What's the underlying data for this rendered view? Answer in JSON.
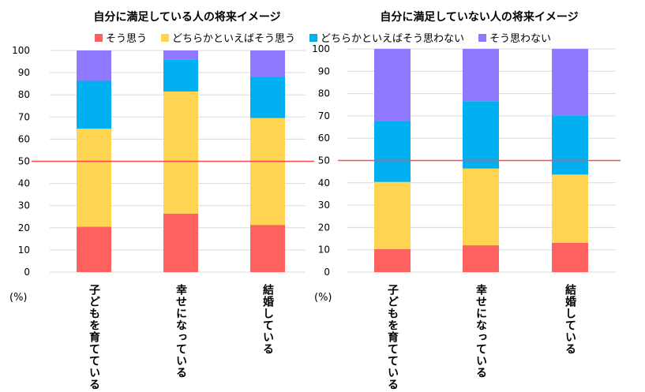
{
  "legend": [
    "そう思う",
    "どちらかといえばそう思う",
    "どちらかといえばそう思わない",
    "そう思わない"
  ],
  "colors": [
    "#FF6161",
    "#FFD452",
    "#00B0F0",
    "#9179FF"
  ],
  "chart_data": [
    {
      "type": "bar",
      "stacked": true,
      "title": "自分に満足している人の将来イメージ",
      "categories": [
        "子どもを育てている",
        "幸せになっている",
        "結婚している"
      ],
      "series": [
        {
          "name": "そう思う",
          "values": [
            20.5,
            26.4,
            21.3
          ]
        },
        {
          "name": "どちらかといえばそう思う",
          "values": [
            44.2,
            55.1,
            48.2
          ]
        },
        {
          "name": "どちらかといえばそう思わない",
          "values": [
            21.6,
            14.5,
            18.4
          ]
        },
        {
          "name": "そう思わない",
          "values": [
            13.7,
            4.0,
            12.1
          ]
        }
      ],
      "ylabel": "(%)",
      "ylim": [
        0,
        100
      ],
      "yticks": [
        0,
        10,
        20,
        30,
        40,
        50,
        60,
        70,
        80,
        90,
        100
      ],
      "reference_line": 50,
      "reference_color": "#FF4B4B",
      "grid": true,
      "legend": "top"
    },
    {
      "type": "bar",
      "stacked": true,
      "title": "自分に満足していない人の将来イメージ",
      "categories": [
        "子どもを育てている",
        "幸せになっている",
        "結婚している"
      ],
      "series": [
        {
          "name": "そう思う",
          "values": [
            10.3,
            12.0,
            13.1
          ]
        },
        {
          "name": "どちらかといえばそう思う",
          "values": [
            30.1,
            34.4,
            30.6
          ]
        },
        {
          "name": "どちらかといえばそう思わない",
          "values": [
            27.4,
            30.2,
            26.5
          ]
        },
        {
          "name": "そう思わない",
          "values": [
            32.2,
            23.4,
            29.8
          ]
        }
      ],
      "ylabel": "(%)",
      "ylim": [
        0,
        100
      ],
      "yticks": [
        0,
        10,
        20,
        30,
        40,
        50,
        60,
        70,
        80,
        90,
        100
      ],
      "reference_line": 50,
      "reference_color": "#FF4B4B",
      "grid": true,
      "legend": "top"
    }
  ]
}
